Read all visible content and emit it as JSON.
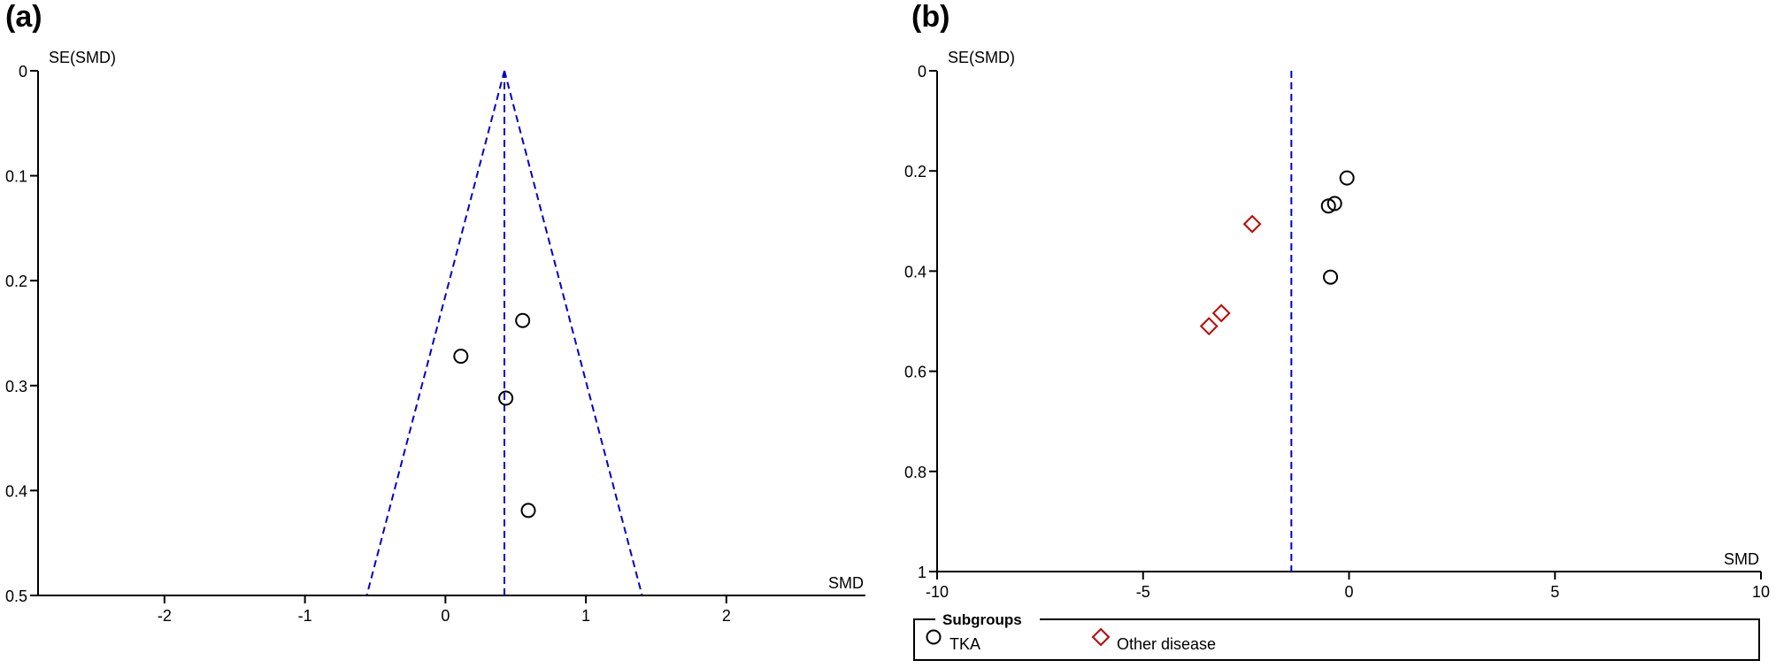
{
  "panels": {
    "a": {
      "label": "(a)"
    },
    "b": {
      "label": "(b)"
    }
  },
  "chart_data": [
    {
      "type": "scatter",
      "panel": "(a)",
      "xlabel": "SMD",
      "ylabel": "SE(SMD)",
      "xlim": [
        -2.9,
        2.99
      ],
      "ylim": [
        0,
        0.5
      ],
      "y_inverted": true,
      "xticks": [
        -2,
        -1,
        0,
        1,
        2
      ],
      "yticks": [
        0,
        0.1,
        0.2,
        0.3,
        0.4,
        0.5
      ],
      "pooled_smd": 0.42,
      "funnel": true,
      "funnel_color": "#0000cc",
      "marker": "circle",
      "points": [
        {
          "x": 0.55,
          "y": 0.238
        },
        {
          "x": 0.11,
          "y": 0.272
        },
        {
          "x": 0.43,
          "y": 0.312
        },
        {
          "x": 0.59,
          "y": 0.419
        }
      ]
    },
    {
      "type": "scatter",
      "panel": "(b)",
      "xlabel": "SMD",
      "ylabel": "SE(SMD)",
      "xlim": [
        -10,
        10
      ],
      "ylim": [
        0,
        1
      ],
      "y_inverted": true,
      "xticks": [
        -10,
        -5,
        0,
        5,
        10
      ],
      "yticks": [
        0,
        0.2,
        0.4,
        0.6,
        0.8,
        1
      ],
      "pooled_smd": -1.4,
      "reference_color": "#0000cc",
      "legend": {
        "title": "Subgroups",
        "placement": "bottom",
        "entries": [
          {
            "name": "TKA",
            "marker": "circle",
            "color": "#000000"
          },
          {
            "name": "Other disease",
            "marker": "diamond",
            "color": "#c00000"
          }
        ]
      },
      "series": [
        {
          "name": "TKA",
          "marker": "circle",
          "color": "#000000",
          "points": [
            {
              "x": -0.05,
              "y": 0.214
            },
            {
              "x": -0.35,
              "y": 0.265
            },
            {
              "x": -0.5,
              "y": 0.27
            },
            {
              "x": -0.45,
              "y": 0.412
            }
          ]
        },
        {
          "name": "Other disease",
          "marker": "diamond",
          "color": "#c00000",
          "points": [
            {
              "x": -2.35,
              "y": 0.306
            },
            {
              "x": -3.1,
              "y": 0.484
            },
            {
              "x": -3.4,
              "y": 0.51
            }
          ]
        }
      ]
    }
  ]
}
